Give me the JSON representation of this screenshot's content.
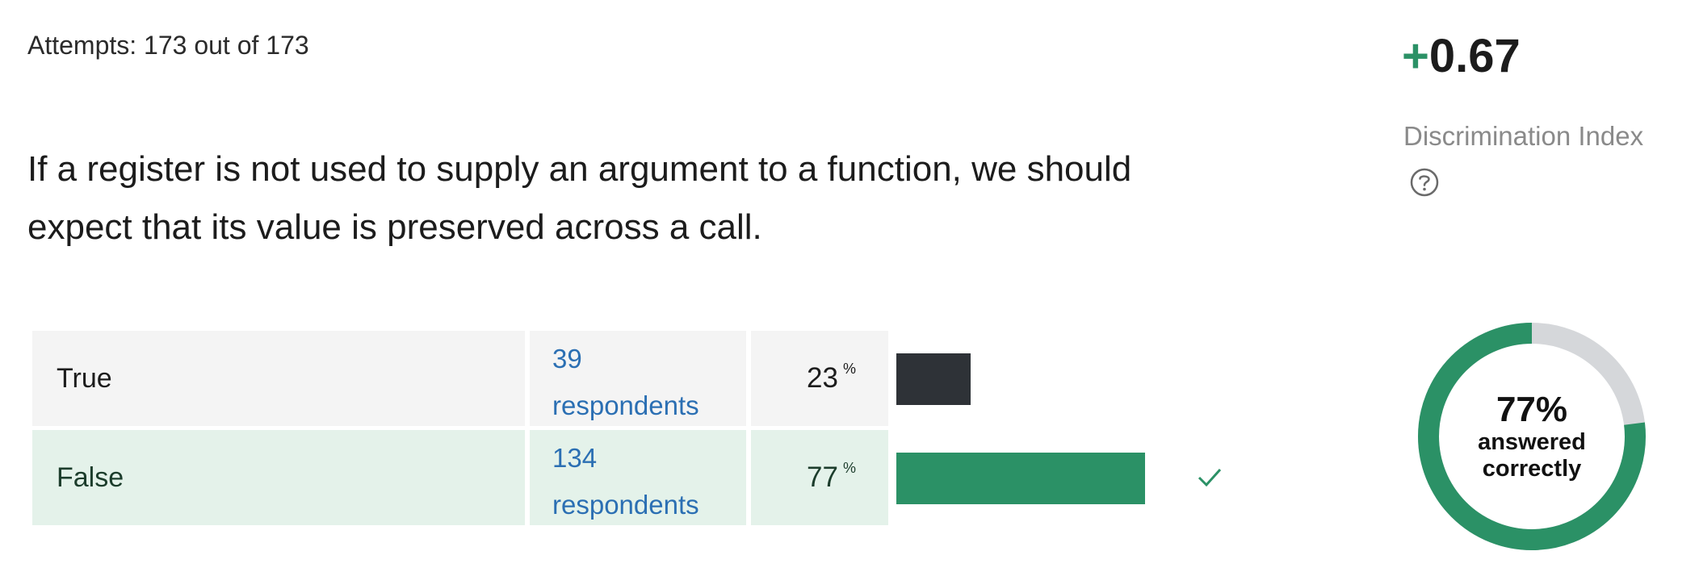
{
  "attempts": "Attempts: 173 out of 173",
  "question": "If a register is not used to supply an argument to a function, we should expect that its value is preserved across a call.",
  "answers": [
    {
      "label": "True",
      "count": "39",
      "respondents_label": "respondents",
      "percent": "23",
      "percent_sign": "%",
      "fraction": 0.23,
      "correct": false
    },
    {
      "label": "False",
      "count": "134",
      "respondents_label": "respondents",
      "percent": "77",
      "percent_sign": "%",
      "fraction": 0.77,
      "correct": true
    }
  ],
  "discrimination": {
    "sign": "+",
    "value": "0.67",
    "label": "Discrimination Index",
    "help_icon": "question-circle-icon"
  },
  "summary": {
    "percent_text": "77%",
    "line1": "answered",
    "line2": "correctly",
    "fraction": 0.77
  },
  "colors": {
    "correct": "#2b9166",
    "incorrect_bar": "#2e3237",
    "donut_track": "#d5d7da",
    "link": "#2b6fb3"
  }
}
